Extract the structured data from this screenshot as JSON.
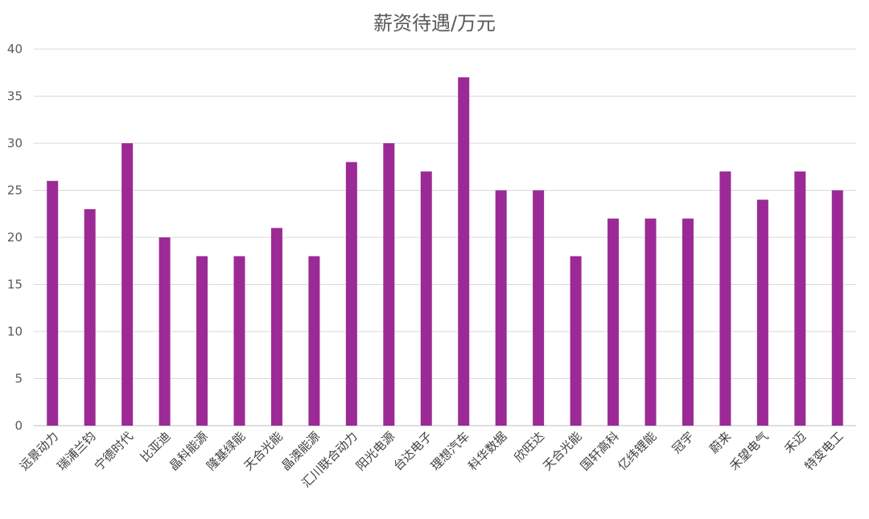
{
  "chart_data": {
    "type": "bar",
    "title": "薪资待遇/万元",
    "xlabel": "",
    "ylabel": "",
    "categories": [
      "远景动力",
      "瑞浦兰钧",
      "宁德时代",
      "比亚迪",
      "晶科能源",
      "隆基绿能",
      "天合光能",
      "晶澳能源",
      "汇川联合动力",
      "阳光电源",
      "台达电子",
      "理想汽车",
      "科华数据",
      "欣旺达",
      "天合光能",
      "国轩高科",
      "亿纬锂能",
      "冠宇",
      "蔚来",
      "禾望电气",
      "禾迈",
      "特变电工"
    ],
    "values": [
      26,
      23,
      30,
      20,
      18,
      18,
      21,
      18,
      28,
      30,
      27,
      37,
      25,
      25,
      18,
      22,
      22,
      22,
      27,
      24,
      27,
      25
    ],
    "ylim": [
      0,
      40
    ],
    "yticks": [
      0,
      5,
      10,
      15,
      20,
      25,
      30,
      35,
      40
    ],
    "grid": true,
    "legend": "none",
    "colors": {
      "bar": "#9c2a96",
      "grid": "#d9d9d9",
      "title": "#595959",
      "tick_label": "#595959"
    }
  }
}
